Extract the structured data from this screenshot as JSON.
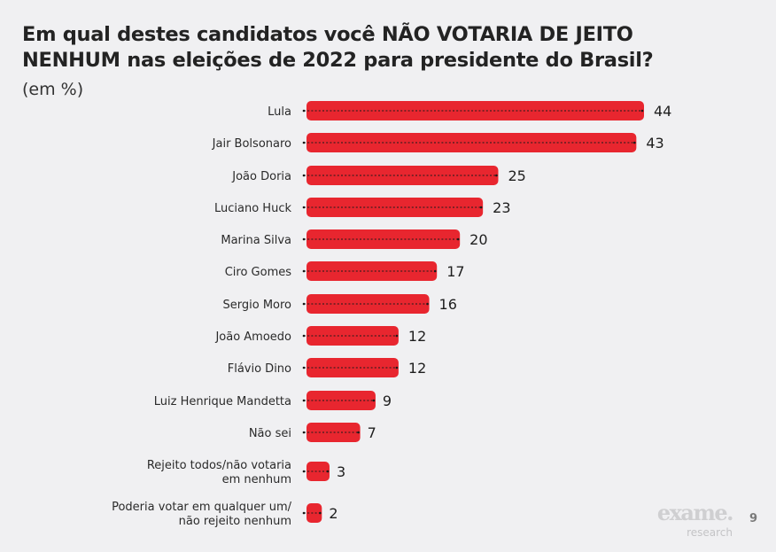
{
  "chart_data": {
    "type": "bar",
    "orientation": "horizontal",
    "title": "Em qual destes candidatos você NÃO VOTARIA DE JEITO NENHUM nas eleições de 2022 para presidente do Brasil?",
    "subtitle": "(em %)",
    "xlabel": "",
    "ylabel": "",
    "unit": "%",
    "grid": false,
    "legend": "none",
    "bar_color": "#e8262f",
    "categories": [
      [
        "Lula"
      ],
      [
        "Jair Bolsonaro"
      ],
      [
        "João Doria"
      ],
      [
        "Luciano Huck"
      ],
      [
        "Marina Silva"
      ],
      [
        "Ciro Gomes"
      ],
      [
        "Sergio Moro"
      ],
      [
        "João Amoedo"
      ],
      [
        "Flávio Dino"
      ],
      [
        "Luiz Henrique Mandetta"
      ],
      [
        "Não sei"
      ],
      [
        "Rejeito todos/não votaria",
        "em nenhum"
      ],
      [
        "Poderia votar em qualquer um/",
        "não rejeito nenhum"
      ]
    ],
    "values": [
      44,
      43,
      25,
      23,
      20,
      17,
      16,
      12,
      12,
      9,
      7,
      3,
      2
    ],
    "xlim": [
      0,
      44
    ]
  },
  "header": {
    "title_line1": "Em qual destes candidatos você NÃO VOTARIA DE JEITO",
    "title_line2": "NENHUM nas eleições de 2022 para presidente do Brasil?",
    "subtitle": "(em %)"
  },
  "footer": {
    "brand": "exame.",
    "brand_sub": "research",
    "page_number": "9"
  }
}
